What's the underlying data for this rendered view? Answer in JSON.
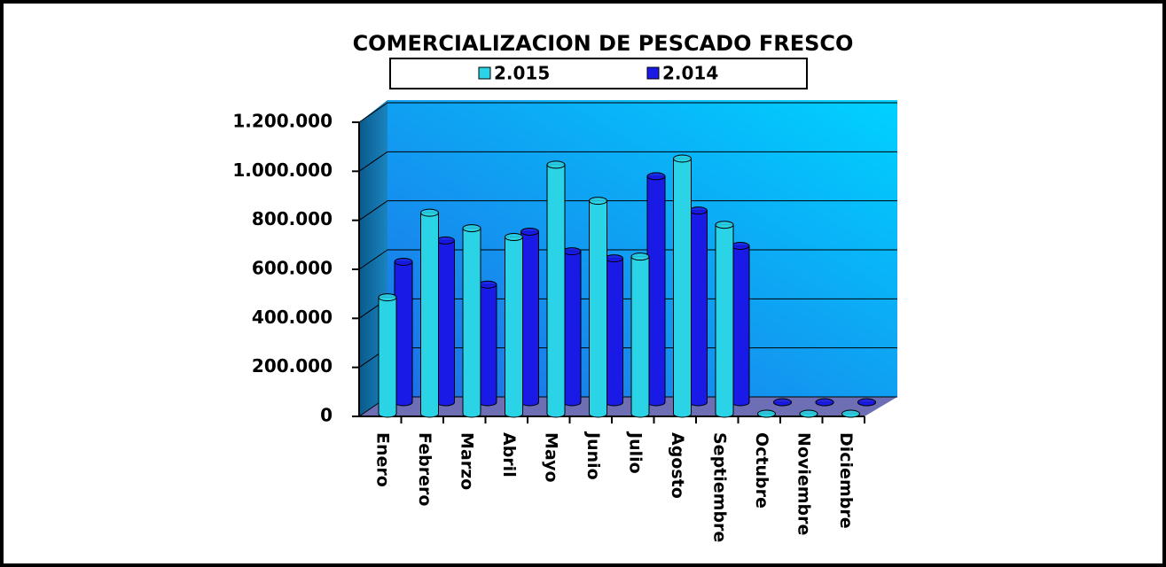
{
  "chart_data": {
    "type": "bar3d",
    "title": "COMERCIALIZACION DE PESCADO FRESCO",
    "categories": [
      "Enero",
      "Febrero",
      "Marzo",
      "Abril",
      "Mayo",
      "Junio",
      "Julio",
      "Agosto",
      "Septiembre",
      "Octubre",
      "Noviembre",
      "Diciembre"
    ],
    "series": [
      {
        "name": "2.015",
        "color": "#2ad4e6",
        "values": [
          475000,
          820000,
          757000,
          721000,
          1016000,
          869000,
          641000,
          1041000,
          771000,
          0,
          0,
          0
        ]
      },
      {
        "name": "2.014",
        "color": "#1a1ae6",
        "values": [
          573000,
          660000,
          480000,
          696000,
          616000,
          587000,
          922000,
          782000,
          638000,
          0,
          0,
          0
        ]
      }
    ],
    "ylim": [
      0,
      1200000
    ],
    "yticks": [
      0,
      {
        "value": 200000,
        "label": "200.000"
      },
      {
        "value": 400000,
        "label": "400.000"
      },
      {
        "value": 600000,
        "label": "600.000"
      },
      {
        "value": 800000,
        "label": "800.000"
      },
      {
        "value": 1000000,
        "label": "1.000.000"
      },
      {
        "value": 1200000,
        "label": "1.200.000"
      }
    ],
    "grid": true
  }
}
